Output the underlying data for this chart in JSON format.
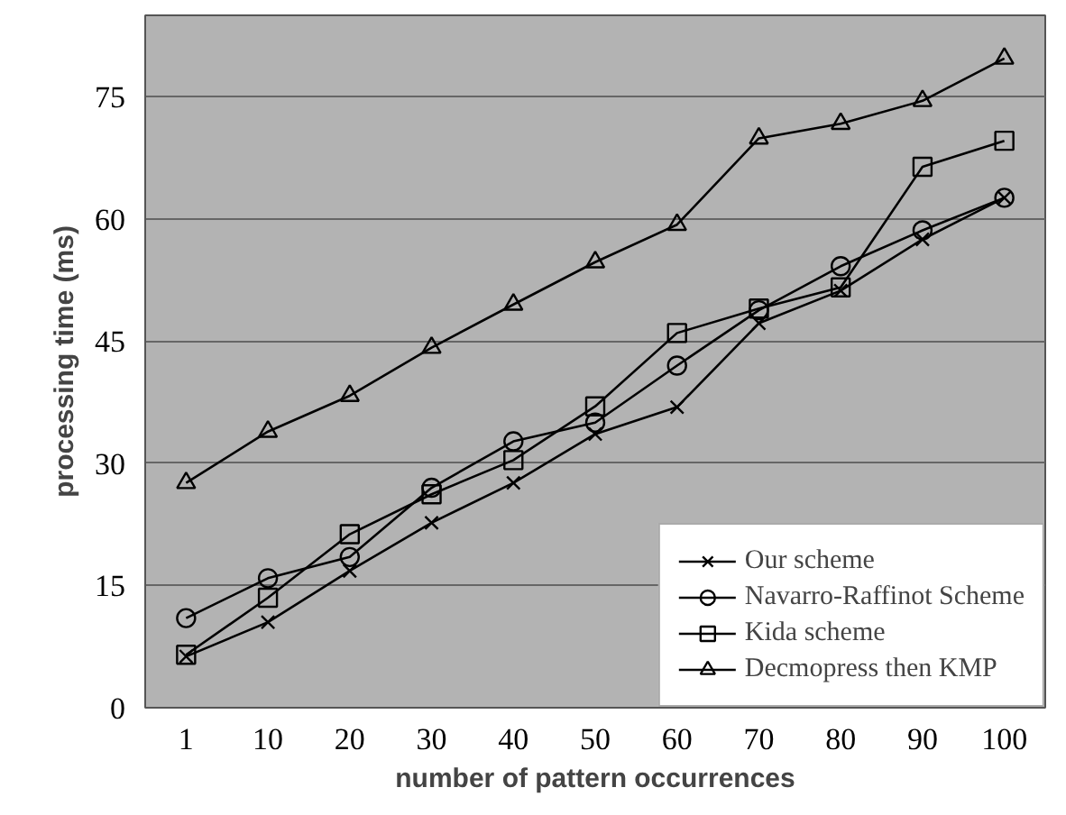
{
  "chart_data": {
    "type": "line",
    "xlabel": "number of pattern occurrences",
    "ylabel": "processing time (ms)",
    "categories": [
      "1",
      "10",
      "20",
      "30",
      "40",
      "50",
      "60",
      "70",
      "80",
      "90",
      "100"
    ],
    "ylim": [
      0,
      85
    ],
    "yticks": [
      0,
      15,
      30,
      45,
      60,
      75
    ],
    "grid": "y",
    "legend": "bottom right",
    "series": [
      {
        "name": "Our scheme",
        "color": "#000000",
        "marker": "cross",
        "values": [
          6.3,
          10.5,
          16.8,
          22.7,
          27.6,
          33.6,
          36.9,
          47.2,
          51.2,
          57.5,
          62.6
        ]
      },
      {
        "name": "Navarro-Raffinot Scheme",
        "color": "#000000",
        "marker": "circle",
        "values": [
          11,
          15.9,
          18.5,
          27,
          32.7,
          35,
          42,
          48.8,
          54.2,
          58.6,
          62.6
        ]
      },
      {
        "name": "Kida scheme",
        "color": "#000000",
        "marker": "square",
        "values": [
          6.5,
          13.5,
          21.3,
          26.2,
          30.4,
          37,
          46,
          49,
          51.6,
          66.4,
          69.6
        ]
      },
      {
        "name": "Decmopress then KMP",
        "color": "#000000",
        "marker": "triangle",
        "values": [
          27.6,
          33.9,
          38.3,
          44.2,
          49.5,
          54.7,
          59.3,
          69.9,
          71.7,
          74.5,
          79.7
        ]
      }
    ]
  }
}
